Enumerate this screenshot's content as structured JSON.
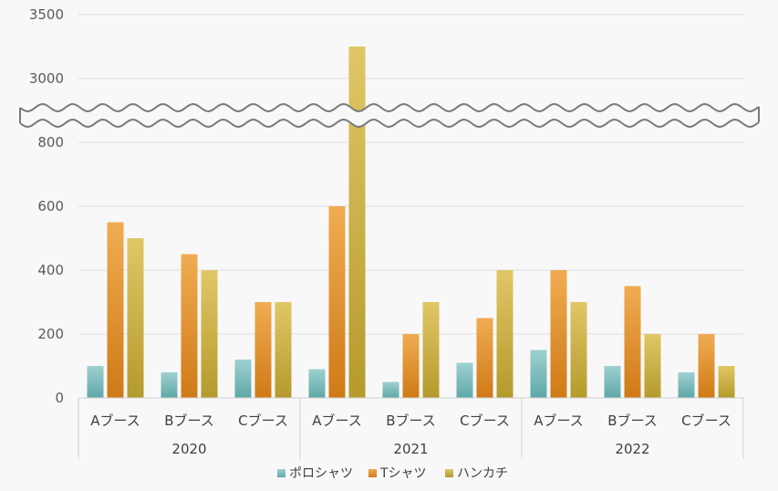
{
  "chart_data": {
    "type": "bar",
    "title": "",
    "xlabel": "",
    "ylabel": "",
    "axis_break": {
      "lower_range": [
        0,
        800
      ],
      "upper_range": [
        3000,
        3500
      ]
    },
    "y_ticks": [
      "0",
      "200",
      "400",
      "600",
      "800",
      "3000",
      "3500"
    ],
    "groups": [
      {
        "label": "2020",
        "categories": [
          "Aブース",
          "Bブース",
          "Cブース"
        ]
      },
      {
        "label": "2021",
        "categories": [
          "Aブース",
          "Bブース",
          "Cブース"
        ]
      },
      {
        "label": "2022",
        "categories": [
          "Aブース",
          "Bブース",
          "Cブース"
        ]
      }
    ],
    "series": [
      {
        "name": "ポロシャツ",
        "color": "#7fbfbf",
        "values": [
          100,
          80,
          120,
          90,
          50,
          110,
          150,
          100,
          80
        ]
      },
      {
        "name": "Tシャツ",
        "color": "#e8962e",
        "values": [
          550,
          450,
          300,
          600,
          200,
          250,
          400,
          350,
          200
        ]
      },
      {
        "name": "ハンカチ",
        "color": "#d2b84a",
        "values": [
          500,
          400,
          300,
          3250,
          300,
          400,
          300,
          200,
          100
        ]
      }
    ],
    "grid": true,
    "legend": "bottom"
  }
}
